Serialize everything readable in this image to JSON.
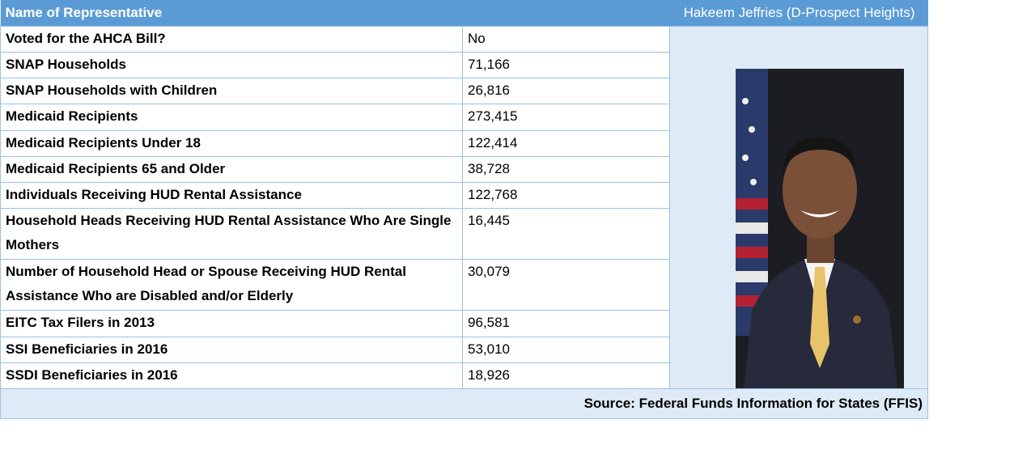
{
  "header": {
    "label": "Name of Representative",
    "value": "Hakeem Jeffries (D-Prospect Heights)"
  },
  "rows": [
    [
      "Voted for the AHCA Bill?",
      "No"
    ],
    [
      "SNAP Households",
      "71,166"
    ],
    [
      "SNAP Households with Children",
      "26,816"
    ],
    [
      "Medicaid Recipients",
      "273,415"
    ],
    [
      "Medicaid Recipients Under 18",
      "122,414"
    ],
    [
      "Medicaid Recipients 65 and Older",
      "38,728"
    ],
    [
      "Individuals Receiving HUD Rental Assistance",
      "122,768"
    ],
    [
      "Household Heads Receiving HUD Rental Assistance Who Are Single Mothers",
      "16,445"
    ],
    [
      "Number of Household Head or Spouse Receiving HUD Rental Assistance Who are Disabled and/or Elderly",
      "30,079"
    ],
    [
      "EITC Tax Filers in 2013",
      "96,581"
    ],
    [
      "SSI Beneficiaries in 2016",
      "53,010"
    ],
    [
      "SSDI Beneficiaries in 2016",
      "18,926"
    ]
  ],
  "source": "Source: Federal Funds Information for States (FFIS)"
}
